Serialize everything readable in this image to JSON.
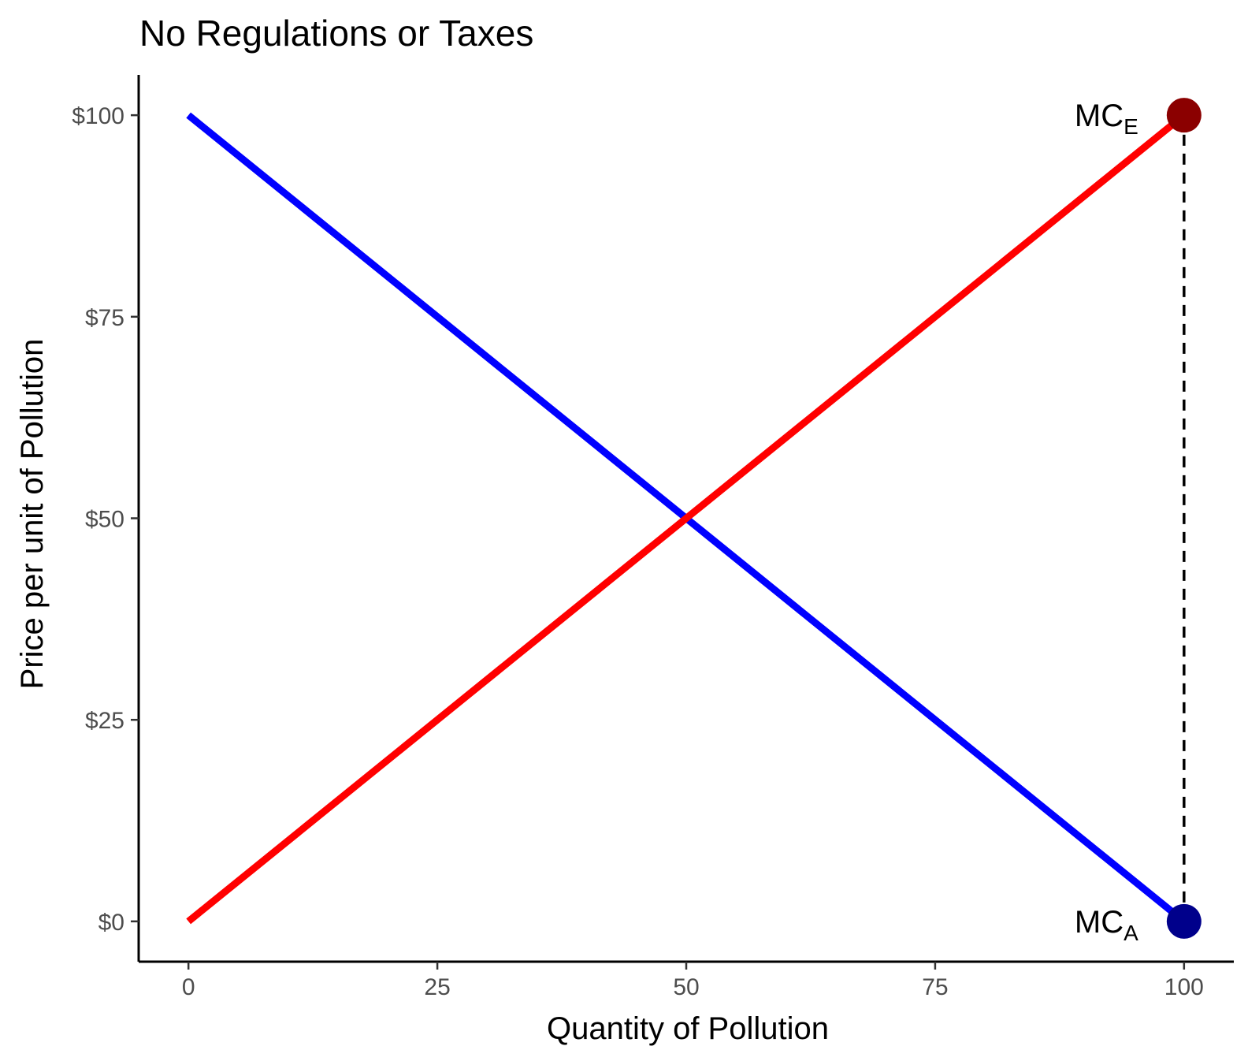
{
  "chart_data": {
    "type": "line",
    "title": "No Regulations or Taxes",
    "xlabel": "Quantity of Pollution",
    "ylabel": "Price per unit of Pollution",
    "xlim": [
      -5,
      105
    ],
    "ylim": [
      -5,
      105
    ],
    "x_ticks": [
      0,
      25,
      50,
      75,
      100
    ],
    "x_tick_labels": [
      "0",
      "25",
      "50",
      "75",
      "100"
    ],
    "y_ticks": [
      0,
      25,
      50,
      75,
      100
    ],
    "y_tick_labels": [
      "$0",
      "$25",
      "$50",
      "$75",
      "$100"
    ],
    "grid": false,
    "series": [
      {
        "color": "#0000ff",
        "x": [
          0,
          100
        ],
        "y": [
          100,
          0
        ]
      },
      {
        "color": "#ff0000",
        "x": [
          0,
          100
        ],
        "y": [
          0,
          100
        ]
      }
    ],
    "reference_lines": [
      {
        "style": "dashed",
        "color": "#000000",
        "x": [
          100,
          100
        ],
        "y": [
          0,
          100
        ]
      }
    ],
    "points": [
      {
        "label_main": "MC",
        "label_sub": "E",
        "x": 100,
        "y": 100,
        "color": "#8b0000"
      },
      {
        "label_main": "MC",
        "label_sub": "A",
        "x": 100,
        "y": 0,
        "color": "#00008b"
      }
    ]
  }
}
